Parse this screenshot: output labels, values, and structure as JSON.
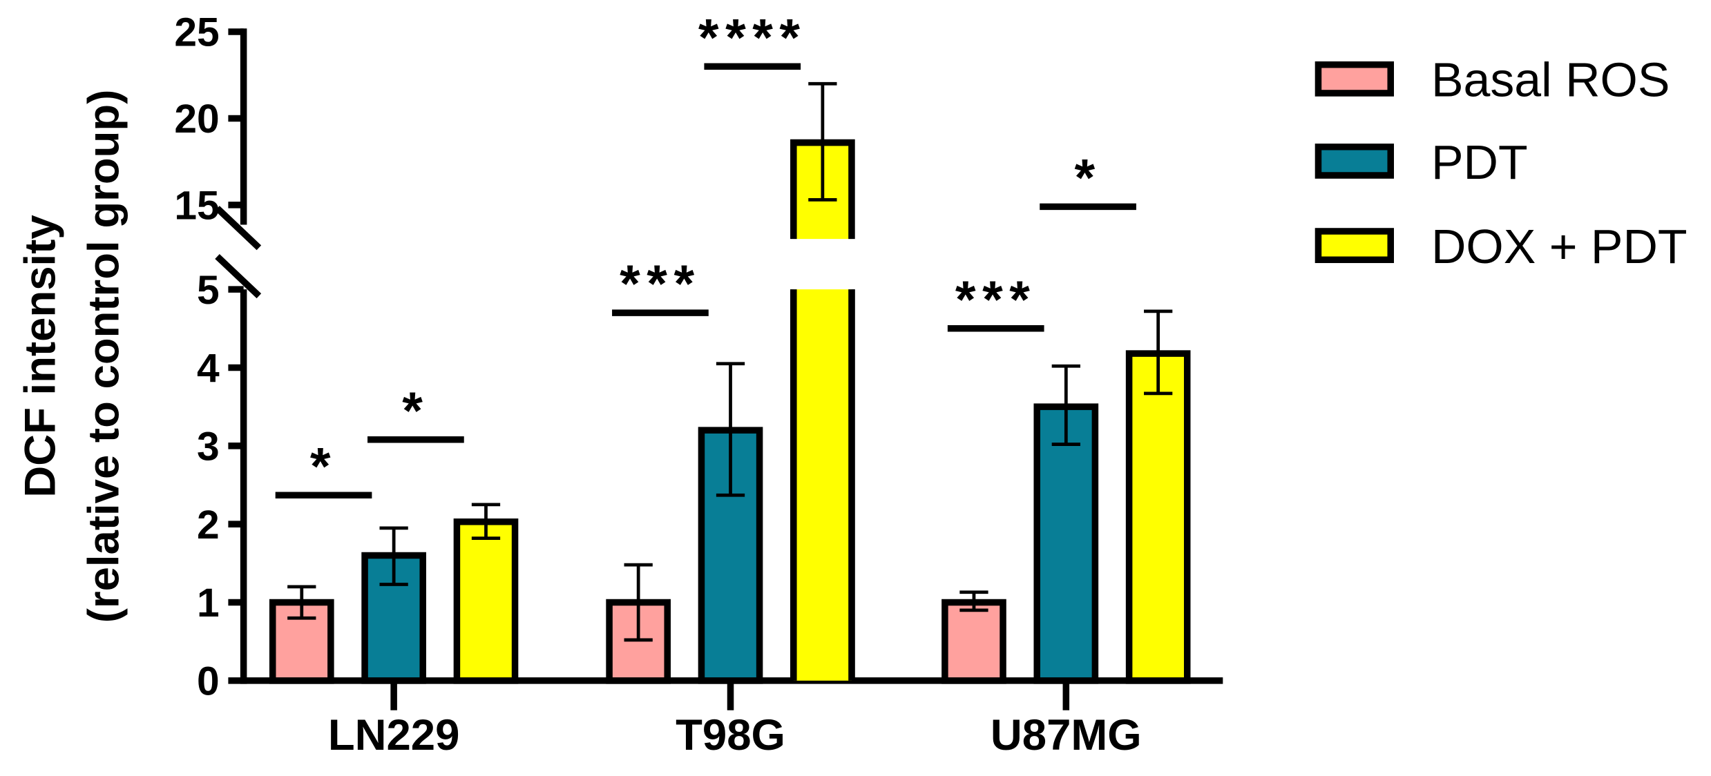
{
  "chart_data": {
    "type": "bar",
    "title": "",
    "xlabel": "",
    "ylabel": [
      "DCF intensity",
      "(relative to control group)"
    ],
    "y_axis_broken": true,
    "ylim_lower": [
      0,
      5
    ],
    "ylim_upper": [
      13,
      25
    ],
    "yticks_lower": [
      "0",
      "1",
      "2",
      "3",
      "4",
      "5"
    ],
    "yticks_upper": [
      "15",
      "20",
      "25"
    ],
    "grid": false,
    "legend_position": "top-right",
    "categories": [
      "LN229",
      "T98G",
      "U87MG"
    ],
    "series": [
      {
        "name": "Basal ROS",
        "color": "#FFA19E",
        "values": [
          1.0,
          1.0,
          1.0
        ],
        "err_upper": [
          1.2,
          1.48,
          1.13
        ],
        "err_lower": [
          0.8,
          0.52,
          0.9
        ]
      },
      {
        "name": "PDT",
        "color": "#087E96",
        "values": [
          1.6,
          3.2,
          3.5
        ],
        "err_upper": [
          1.95,
          4.05,
          4.02
        ],
        "err_lower": [
          1.23,
          2.37,
          3.02
        ]
      },
      {
        "name": "DOX + PDT",
        "color": "#FFFF00",
        "values": [
          2.03,
          18.6,
          4.18
        ],
        "err_upper": [
          2.25,
          22.0,
          4.72
        ],
        "err_lower": [
          1.82,
          15.3,
          3.67
        ]
      }
    ],
    "significance": [
      {
        "category": "LN229",
        "from_series": 0,
        "to_series": 1,
        "label": "*",
        "y": 2.37
      },
      {
        "category": "LN229",
        "from_series": 1,
        "to_series": 2,
        "label": "*",
        "y": 3.08
      },
      {
        "category": "T98G",
        "from_series": 0,
        "to_series": 1,
        "label": "***",
        "y": 4.7
      },
      {
        "category": "T98G",
        "from_series": 1,
        "to_series": 2,
        "label": "****",
        "y": 23.0
      },
      {
        "category": "U87MG",
        "from_series": 0,
        "to_series": 1,
        "label": "***",
        "y": 4.5
      },
      {
        "category": "U87MG",
        "from_series": 1,
        "to_series": 2,
        "label": "*",
        "y": 14.9
      }
    ]
  }
}
